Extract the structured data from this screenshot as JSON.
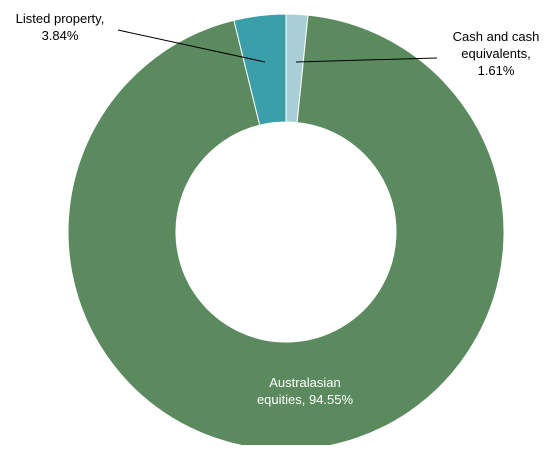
{
  "chart_data": {
    "type": "pie",
    "title": "",
    "legend": "none",
    "donut": true,
    "slices": [
      {
        "label": "Cash and cash equivalents",
        "value": 1.61,
        "label_lines": [
          "Cash and cash",
          "equivalents,",
          "1.61%"
        ],
        "color": "#a9cfd6"
      },
      {
        "label": "Australasian equities",
        "value": 94.55,
        "label_lines": [
          "Australasian",
          "equities, 94.55%"
        ],
        "color": "#5b8a5e"
      },
      {
        "label": "Listed property",
        "value": 3.84,
        "label_lines": [
          "Listed property,",
          "3.84%"
        ],
        "color": "#3a9fa8"
      }
    ]
  }
}
